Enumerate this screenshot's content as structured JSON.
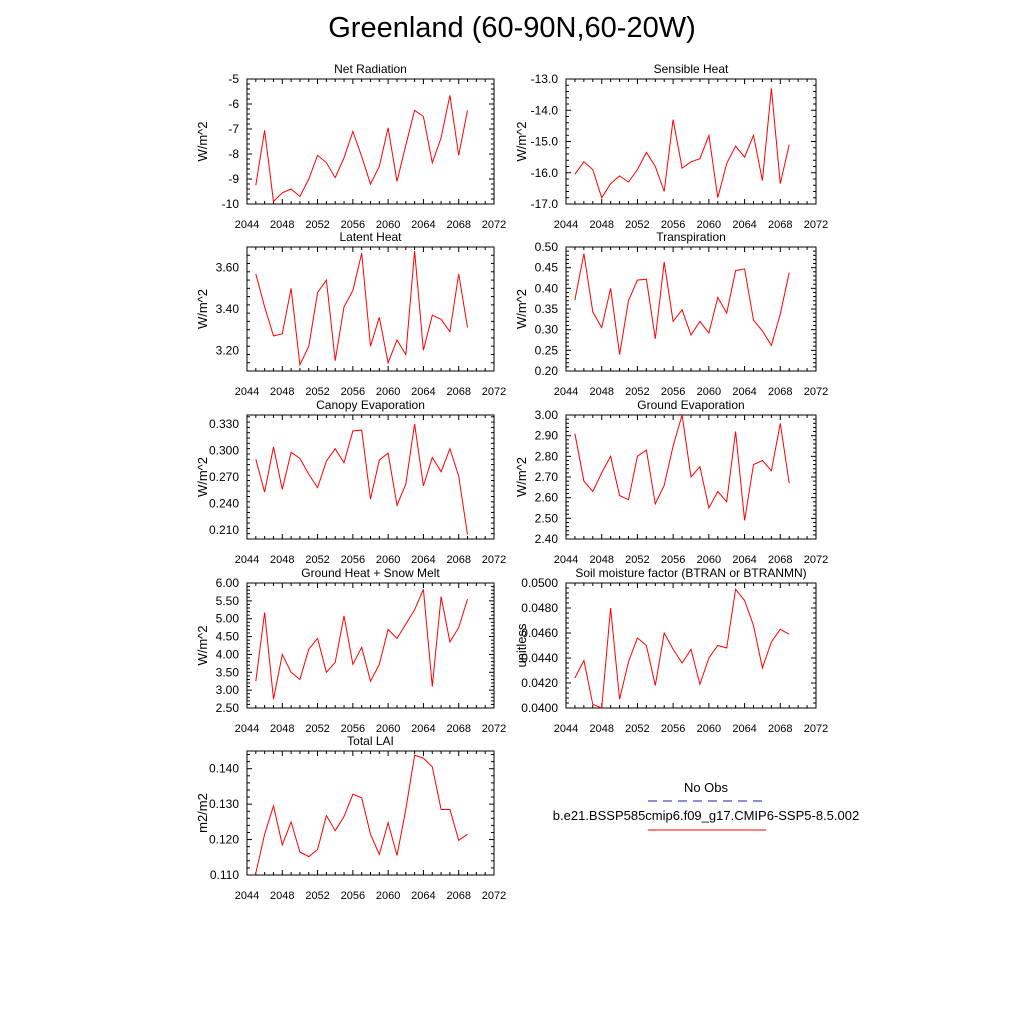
{
  "title": "Greenland (60-90N,60-20W)",
  "legend": {
    "obs_label": "No Obs",
    "model_label": "b.e21.BSSP585cmip6.f09_g17.CMIP6-SSP5-8.5.002",
    "obs_color": "#1f1fa0",
    "model_color": "#ff0000"
  },
  "chart_data": [
    {
      "type": "line",
      "title": "Net Radiation",
      "ylabel": "W/m^2",
      "xlim": [
        2044,
        2072
      ],
      "xticks": [
        "2044",
        "2048",
        "2052",
        "2056",
        "2060",
        "2064",
        "2068",
        "2072"
      ],
      "ylim": [
        -10,
        -5
      ],
      "yticks": [
        "-5",
        "-6",
        "-7",
        "-8",
        "-9",
        "-10"
      ],
      "ytick_values": [
        -5,
        -6,
        -7,
        -8,
        -9,
        -10
      ],
      "x": [
        2045,
        2046,
        2047,
        2048,
        2049,
        2050,
        2051,
        2052,
        2053,
        2054,
        2055,
        2056,
        2057,
        2058,
        2059,
        2060,
        2061,
        2062,
        2063,
        2064,
        2065,
        2066,
        2067,
        2068,
        2069
      ],
      "series": [
        {
          "color": "#ff0000",
          "values": [
            -9.25,
            -7.05,
            -9.9,
            -9.55,
            -9.4,
            -9.7,
            -9.0,
            -8.05,
            -8.35,
            -8.95,
            -8.15,
            -7.1,
            -8.1,
            -9.2,
            -8.5,
            -6.95,
            -9.1,
            -7.65,
            -6.25,
            -6.5,
            -8.35,
            -7.35,
            -5.65,
            -8.05,
            -6.25
          ]
        }
      ]
    },
    {
      "type": "line",
      "title": "Sensible Heat",
      "ylabel": "W/m^2",
      "xlim": [
        2044,
        2072
      ],
      "xticks": [
        "2044",
        "2048",
        "2052",
        "2056",
        "2060",
        "2064",
        "2068",
        "2072"
      ],
      "ylim": [
        -17,
        -13
      ],
      "yticks": [
        "-13.0",
        "-14.0",
        "-15.0",
        "-16.0",
        "-17.0"
      ],
      "ytick_values": [
        -13,
        -14,
        -15,
        -16,
        -17
      ],
      "x": [
        2045,
        2046,
        2047,
        2048,
        2049,
        2050,
        2051,
        2052,
        2053,
        2054,
        2055,
        2056,
        2057,
        2058,
        2059,
        2060,
        2061,
        2062,
        2063,
        2064,
        2065,
        2066,
        2067,
        2068,
        2069
      ],
      "series": [
        {
          "color": "#ff0000",
          "values": [
            -16.05,
            -15.65,
            -15.9,
            -16.8,
            -16.35,
            -16.1,
            -16.3,
            -15.9,
            -15.35,
            -15.8,
            -16.6,
            -14.3,
            -15.85,
            -15.65,
            -15.55,
            -14.8,
            -16.8,
            -15.7,
            -15.15,
            -15.5,
            -14.8,
            -16.25,
            -13.3,
            -16.35,
            -15.1
          ]
        }
      ]
    },
    {
      "type": "line",
      "title": "Latent Heat",
      "ylabel": "W/m^2",
      "xlim": [
        2044,
        2072
      ],
      "xticks": [
        "2044",
        "2048",
        "2052",
        "2056",
        "2060",
        "2064",
        "2068",
        "2072"
      ],
      "ylim": [
        3.1,
        3.7
      ],
      "yticks": [
        "3.60",
        "3.40",
        "3.20"
      ],
      "ytick_values": [
        3.6,
        3.4,
        3.2
      ],
      "x": [
        2045,
        2046,
        2047,
        2048,
        2049,
        2050,
        2051,
        2052,
        2053,
        2054,
        2055,
        2056,
        2057,
        2058,
        2059,
        2060,
        2061,
        2062,
        2063,
        2064,
        2065,
        2066,
        2067,
        2068,
        2069
      ],
      "series": [
        {
          "color": "#ff0000",
          "values": [
            3.57,
            3.41,
            3.27,
            3.28,
            3.5,
            3.13,
            3.22,
            3.48,
            3.54,
            3.15,
            3.41,
            3.49,
            3.67,
            3.22,
            3.36,
            3.14,
            3.25,
            3.18,
            3.68,
            3.2,
            3.37,
            3.35,
            3.29,
            3.57,
            3.31
          ]
        }
      ]
    },
    {
      "type": "line",
      "title": "Transpiration",
      "ylabel": "W/m^2",
      "xlim": [
        2044,
        2072
      ],
      "xticks": [
        "2044",
        "2048",
        "2052",
        "2056",
        "2060",
        "2064",
        "2068",
        "2072"
      ],
      "ylim": [
        0.2,
        0.5
      ],
      "yticks": [
        "0.50",
        "0.45",
        "0.40",
        "0.35",
        "0.30",
        "0.25",
        "0.20"
      ],
      "ytick_values": [
        0.5,
        0.45,
        0.4,
        0.35,
        0.3,
        0.25,
        0.2
      ],
      "x": [
        2045,
        2046,
        2047,
        2048,
        2049,
        2050,
        2051,
        2052,
        2053,
        2054,
        2055,
        2056,
        2057,
        2058,
        2059,
        2060,
        2061,
        2062,
        2063,
        2064,
        2065,
        2066,
        2067,
        2068,
        2069
      ],
      "series": [
        {
          "color": "#ff0000",
          "values": [
            0.372,
            0.484,
            0.343,
            0.305,
            0.4,
            0.24,
            0.37,
            0.42,
            0.422,
            0.278,
            0.464,
            0.32,
            0.348,
            0.287,
            0.32,
            0.292,
            0.378,
            0.34,
            0.443,
            0.447,
            0.323,
            0.297,
            0.262,
            0.338,
            0.438
          ]
        }
      ]
    },
    {
      "type": "line",
      "title": "Canopy Evaporation",
      "ylabel": "W/m^2",
      "xlim": [
        2044,
        2072
      ],
      "xticks": [
        "2044",
        "2048",
        "2052",
        "2056",
        "2060",
        "2064",
        "2068",
        "2072"
      ],
      "ylim": [
        0.2,
        0.34
      ],
      "yticks": [
        "0.330",
        "0.300",
        "0.270",
        "0.240",
        "0.210"
      ],
      "ytick_values": [
        0.33,
        0.3,
        0.27,
        0.24,
        0.21
      ],
      "x": [
        2045,
        2046,
        2047,
        2048,
        2049,
        2050,
        2051,
        2052,
        2053,
        2054,
        2055,
        2056,
        2057,
        2058,
        2059,
        2060,
        2061,
        2062,
        2063,
        2064,
        2065,
        2066,
        2067,
        2068,
        2069
      ],
      "series": [
        {
          "color": "#ff0000",
          "values": [
            0.29,
            0.253,
            0.304,
            0.256,
            0.298,
            0.291,
            0.273,
            0.258,
            0.288,
            0.302,
            0.286,
            0.322,
            0.323,
            0.245,
            0.289,
            0.297,
            0.238,
            0.262,
            0.33,
            0.26,
            0.292,
            0.276,
            0.302,
            0.271,
            0.205
          ]
        }
      ]
    },
    {
      "type": "line",
      "title": "Ground Evaporation",
      "ylabel": "W/m^2",
      "xlim": [
        2044,
        2072
      ],
      "xticks": [
        "2044",
        "2048",
        "2052",
        "2056",
        "2060",
        "2064",
        "2068",
        "2072"
      ],
      "ylim": [
        2.4,
        3.0
      ],
      "yticks": [
        "3.00",
        "2.90",
        "2.80",
        "2.70",
        "2.60",
        "2.50",
        "2.40"
      ],
      "ytick_values": [
        3.0,
        2.9,
        2.8,
        2.7,
        2.6,
        2.5,
        2.4
      ],
      "x": [
        2045,
        2046,
        2047,
        2048,
        2049,
        2050,
        2051,
        2052,
        2053,
        2054,
        2055,
        2056,
        2057,
        2058,
        2059,
        2060,
        2061,
        2062,
        2063,
        2064,
        2065,
        2066,
        2067,
        2068,
        2069
      ],
      "series": [
        {
          "color": "#ff0000",
          "values": [
            2.91,
            2.68,
            2.63,
            2.72,
            2.8,
            2.61,
            2.59,
            2.8,
            2.83,
            2.57,
            2.66,
            2.85,
            3.0,
            2.7,
            2.75,
            2.55,
            2.63,
            2.58,
            2.92,
            2.49,
            2.76,
            2.78,
            2.73,
            2.96,
            2.67
          ]
        }
      ]
    },
    {
      "type": "line",
      "title": "Ground Heat + Snow Melt",
      "ylabel": "W/m^2",
      "xlim": [
        2044,
        2072
      ],
      "xticks": [
        "2044",
        "2048",
        "2052",
        "2056",
        "2060",
        "2064",
        "2068",
        "2072"
      ],
      "ylim": [
        2.5,
        6.0
      ],
      "yticks": [
        "6.00",
        "5.50",
        "5.00",
        "4.50",
        "4.00",
        "3.50",
        "3.00",
        "2.50"
      ],
      "ytick_values": [
        6.0,
        5.5,
        5.0,
        4.5,
        4.0,
        3.5,
        3.0,
        2.5
      ],
      "x": [
        2045,
        2046,
        2047,
        2048,
        2049,
        2050,
        2051,
        2052,
        2053,
        2054,
        2055,
        2056,
        2057,
        2058,
        2059,
        2060,
        2061,
        2062,
        2063,
        2064,
        2065,
        2066,
        2067,
        2068,
        2069
      ],
      "series": [
        {
          "color": "#ff0000",
          "values": [
            3.25,
            5.17,
            2.75,
            4.0,
            3.5,
            3.3,
            4.15,
            4.45,
            3.5,
            3.78,
            5.08,
            3.72,
            4.2,
            3.25,
            3.72,
            4.7,
            4.45,
            4.85,
            5.25,
            5.82,
            3.1,
            5.62,
            4.35,
            4.75,
            5.55
          ]
        }
      ]
    },
    {
      "type": "line",
      "title": "Soil moisture factor (BTRAN or BTRANMN)",
      "ylabel": "unitless",
      "xlim": [
        2044,
        2072
      ],
      "xticks": [
        "2044",
        "2048",
        "2052",
        "2056",
        "2060",
        "2064",
        "2068",
        "2072"
      ],
      "ylim": [
        0.04,
        0.05
      ],
      "yticks": [
        "0.0500",
        "0.0480",
        "0.0460",
        "0.0440",
        "0.0420",
        "0.0400"
      ],
      "ytick_values": [
        0.05,
        0.048,
        0.046,
        0.044,
        0.042,
        0.04
      ],
      "x": [
        2045,
        2046,
        2047,
        2048,
        2049,
        2050,
        2051,
        2052,
        2053,
        2054,
        2055,
        2056,
        2057,
        2058,
        2059,
        2060,
        2061,
        2062,
        2063,
        2064,
        2065,
        2066,
        2067,
        2068,
        2069
      ],
      "series": [
        {
          "color": "#ff0000",
          "values": [
            0.0424,
            0.0438,
            0.0403,
            0.04,
            0.048,
            0.0407,
            0.0437,
            0.0456,
            0.045,
            0.0418,
            0.046,
            0.0447,
            0.0436,
            0.0447,
            0.0419,
            0.044,
            0.045,
            0.0448,
            0.0495,
            0.0486,
            0.0466,
            0.0432,
            0.0453,
            0.0463,
            0.0459
          ]
        }
      ]
    },
    {
      "type": "line",
      "title": "Total LAI",
      "ylabel": "m2/m2",
      "xlim": [
        2044,
        2072
      ],
      "xticks": [
        "2044",
        "2048",
        "2052",
        "2056",
        "2060",
        "2064",
        "2068",
        "2072"
      ],
      "ylim": [
        0.11,
        0.145
      ],
      "yticks": [
        "0.140",
        "0.130",
        "0.120",
        "0.110"
      ],
      "ytick_values": [
        0.14,
        0.13,
        0.12,
        0.11
      ],
      "x": [
        2045,
        2046,
        2047,
        2048,
        2049,
        2050,
        2051,
        2052,
        2053,
        2054,
        2055,
        2056,
        2057,
        2058,
        2059,
        2060,
        2061,
        2062,
        2063,
        2064,
        2065,
        2066,
        2067,
        2068,
        2069
      ],
      "series": [
        {
          "color": "#ff0000",
          "values": [
            0.1105,
            0.1215,
            0.1295,
            0.1185,
            0.125,
            0.1165,
            0.1152,
            0.1172,
            0.1268,
            0.1225,
            0.1265,
            0.1328,
            0.1318,
            0.1215,
            0.1158,
            0.1248,
            0.1155,
            0.1285,
            0.1438,
            0.143,
            0.1405,
            0.1285,
            0.1285,
            0.1198,
            0.1215
          ]
        }
      ]
    }
  ]
}
